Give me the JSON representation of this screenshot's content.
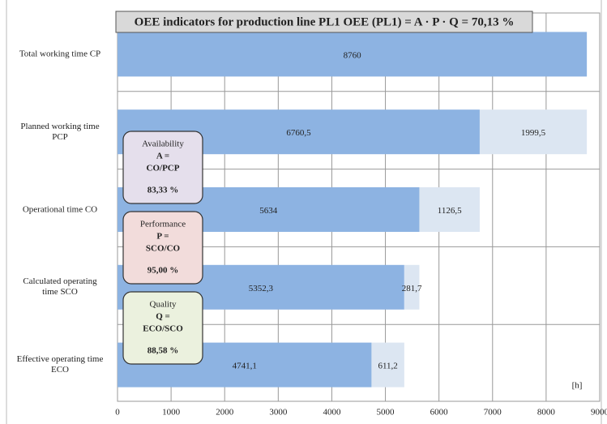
{
  "chart_data": {
    "type": "bar",
    "orientation": "horizontal",
    "stacked": true,
    "title": "OEE indicators for production line PL1  OEE (PL1) = A · P · Q = 70,13 %",
    "categories": [
      "Total working time CP",
      "Planned working time\nPCP",
      "Operational time CO",
      "Calculated operating\ntime SCO",
      "Effective operating time\nECO"
    ],
    "series": [
      {
        "color": "#8db3e2",
        "values": [
          8760,
          6760.5,
          5634,
          5352.3,
          4741.1
        ],
        "value_labels": [
          "8760",
          "6760,5",
          "5634",
          "5352,3",
          "4741,1"
        ]
      },
      {
        "color": "#dce6f2",
        "values": [
          null,
          1999.5,
          1126.5,
          281.7,
          611.2
        ],
        "value_labels": [
          null,
          "1999,5",
          "1126,5",
          "281,7",
          "611,2"
        ]
      }
    ],
    "xlim": [
      0,
      9000
    ],
    "xticks": [
      0,
      1000,
      2000,
      3000,
      4000,
      5000,
      6000,
      7000,
      8000,
      9000
    ],
    "grid": true,
    "x_unit_label": "[h]",
    "annotations": [
      {
        "lines": [
          "Availability",
          "A =",
          "CO/PCP",
          "83,33 %"
        ],
        "color": "#e5dfec"
      },
      {
        "lines": [
          "Performance",
          "P =",
          "SCO/CO",
          "95,00 %"
        ],
        "color": "#f2dcdb"
      },
      {
        "lines": [
          "Quality",
          "Q =",
          "ECO/SCO",
          "88,58 %"
        ],
        "color": "#ebf1de"
      }
    ]
  }
}
